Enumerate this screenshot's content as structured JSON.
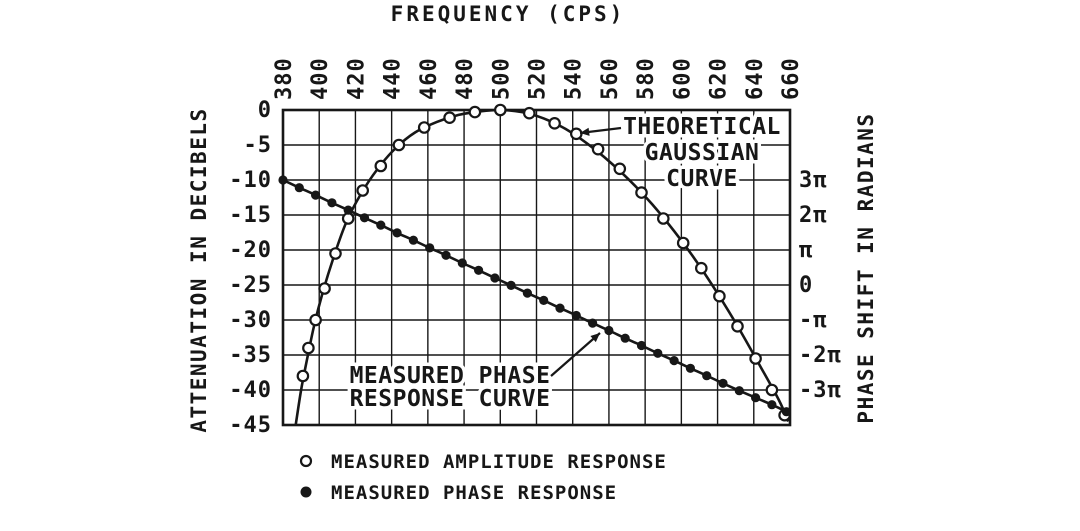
{
  "chart_data": {
    "type": "line",
    "title": "",
    "xlabel": "FREQUENCY (CPS)",
    "ylabel_left": "ATTENUATION IN DECIBELS",
    "ylabel_right": "PHASE SHIFT IN RADIANS",
    "grid": true,
    "x_axis": {
      "min": 380,
      "max": 660,
      "position": "top",
      "ticks": [
        380,
        400,
        420,
        440,
        460,
        480,
        500,
        520,
        540,
        560,
        580,
        600,
        620,
        640,
        660
      ]
    },
    "y_axis_left": {
      "min": -45,
      "max": 0,
      "ticks": [
        0,
        -5,
        -10,
        -15,
        -20,
        -25,
        -30,
        -35,
        -40,
        -45
      ]
    },
    "y_axis_right": {
      "unit": "pi-radians",
      "ticks": [
        {
          "label": "3π",
          "value": 3
        },
        {
          "label": "2π",
          "value": 2
        },
        {
          "label": "π",
          "value": 1
        },
        {
          "label": "0",
          "value": 0
        },
        {
          "label": "-π",
          "value": -1
        },
        {
          "label": "-2π",
          "value": -2
        },
        {
          "label": "-3π",
          "value": -3
        }
      ],
      "alignment": {
        "zero_pi_at_db": -25,
        "db_per_pi": 5
      }
    },
    "series": [
      {
        "name": "theoretical-gaussian-amplitude",
        "marker": "open-circle",
        "units": "dB vs cps",
        "curve_points": [
          [
            387,
            -45
          ],
          [
            390,
            -40
          ],
          [
            393,
            -36
          ],
          [
            397,
            -31
          ],
          [
            402,
            -26
          ],
          [
            408,
            -21
          ],
          [
            415,
            -16
          ],
          [
            423,
            -12
          ],
          [
            432,
            -8.5
          ],
          [
            442,
            -5.5
          ],
          [
            453,
            -3.2
          ],
          [
            465,
            -1.7
          ],
          [
            477,
            -0.7
          ],
          [
            489,
            -0.2
          ],
          [
            500,
            0
          ],
          [
            512,
            -0.3
          ],
          [
            524,
            -1.2
          ],
          [
            536,
            -2.7
          ],
          [
            548,
            -4.8
          ],
          [
            560,
            -7.3
          ],
          [
            572,
            -10.2
          ],
          [
            584,
            -13.5
          ],
          [
            596,
            -17.3
          ],
          [
            608,
            -21.5
          ],
          [
            620,
            -26.2
          ],
          [
            632,
            -31.3
          ],
          [
            644,
            -36.8
          ],
          [
            654,
            -41.5
          ],
          [
            659,
            -44.5
          ]
        ],
        "marker_points": [
          [
            391,
            -38
          ],
          [
            394,
            -34
          ],
          [
            398,
            -30
          ],
          [
            403,
            -25.5
          ],
          [
            409,
            -20.5
          ],
          [
            416,
            -15.5
          ],
          [
            424,
            -11.5
          ],
          [
            434,
            -8
          ],
          [
            444,
            -5
          ],
          [
            458,
            -2.5
          ],
          [
            472,
            -1.1
          ],
          [
            486,
            -0.3
          ],
          [
            500,
            0
          ],
          [
            516,
            -0.45
          ],
          [
            530,
            -1.9
          ],
          [
            542,
            -3.4
          ],
          [
            554,
            -5.6
          ],
          [
            566,
            -8.4
          ],
          [
            578,
            -11.8
          ],
          [
            590,
            -15.5
          ],
          [
            601,
            -19
          ],
          [
            611,
            -22.6
          ],
          [
            621,
            -26.6
          ],
          [
            631,
            -30.9
          ],
          [
            641,
            -35.5
          ],
          [
            650,
            -40
          ],
          [
            657,
            -43.6
          ]
        ]
      },
      {
        "name": "measured-phase-response",
        "marker": "filled-circle",
        "units": "pi-radians vs cps",
        "points": [
          [
            380,
            3.0
          ],
          [
            389,
            2.78
          ],
          [
            398,
            2.57
          ],
          [
            407,
            2.35
          ],
          [
            416,
            2.14
          ],
          [
            425,
            1.92
          ],
          [
            434,
            1.71
          ],
          [
            443,
            1.49
          ],
          [
            452,
            1.28
          ],
          [
            461,
            1.06
          ],
          [
            470,
            0.85
          ],
          [
            479,
            0.63
          ],
          [
            488,
            0.42
          ],
          [
            497,
            0.2
          ],
          [
            506,
            -0.01
          ],
          [
            515,
            -0.23
          ],
          [
            524,
            -0.44
          ],
          [
            533,
            -0.66
          ],
          [
            542,
            -0.87
          ],
          [
            551,
            -1.09
          ],
          [
            560,
            -1.3
          ],
          [
            569,
            -1.52
          ],
          [
            578,
            -1.73
          ],
          [
            587,
            -1.95
          ],
          [
            596,
            -2.16
          ],
          [
            605,
            -2.38
          ],
          [
            614,
            -2.59
          ],
          [
            623,
            -2.81
          ],
          [
            632,
            -3.02
          ],
          [
            641,
            -3.22
          ],
          [
            650,
            -3.42
          ],
          [
            658,
            -3.62
          ]
        ]
      }
    ],
    "annotations": [
      {
        "name": "gaussian-curve-label",
        "lines": [
          "THEORETICAL",
          "GAUSSIAN",
          "CURVE"
        ]
      },
      {
        "name": "phase-curve-label",
        "lines": [
          "MEASURED PHASE",
          "RESPONSE CURVE"
        ]
      }
    ],
    "legend": [
      {
        "marker": "open-circle",
        "label": "MEASURED AMPLITUDE RESPONSE"
      },
      {
        "marker": "filled-circle",
        "label": "MEASURED PHASE RESPONSE"
      }
    ],
    "ink_color": "#171717",
    "background_color": "#ffffff"
  }
}
